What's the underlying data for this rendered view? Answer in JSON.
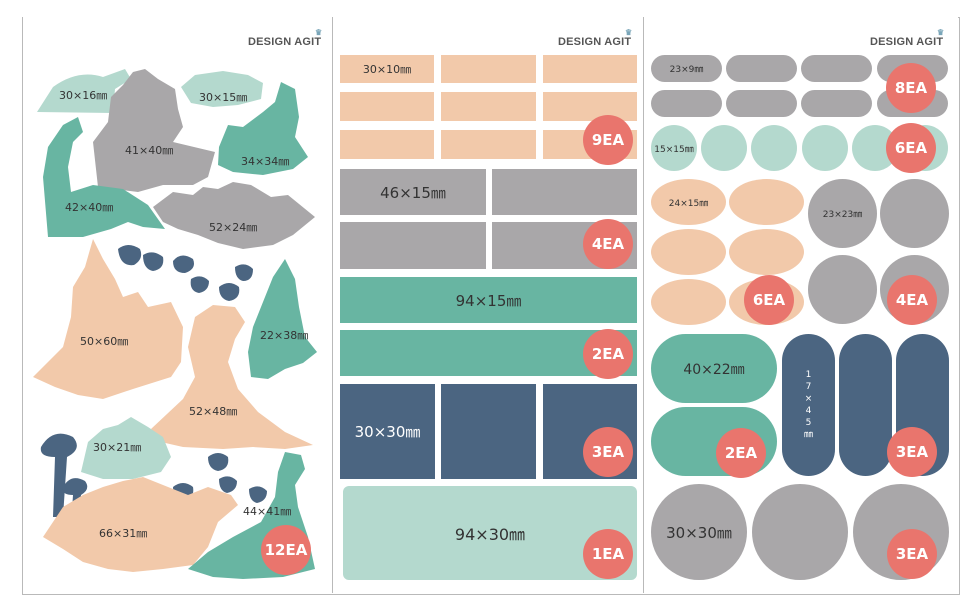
{
  "brand": "DESIGN AGIT",
  "brand_crown": "♛",
  "colors": {
    "peach": "#f2c9aa",
    "gray": "#a9a7a9",
    "teal": "#68b5a2",
    "navy": "#4b6581",
    "mint": "#b4d9ce",
    "badge": "#e9756d"
  },
  "panel1": {
    "labels": [
      "30×16㎜",
      "30×15㎜",
      "41×40㎜",
      "34×34㎜",
      "42×40㎜",
      "52×24㎜",
      "50×60㎜",
      "22×38㎜",
      "52×48㎜",
      "30×21㎜",
      "66×31㎜",
      "44×41㎜"
    ],
    "badge": "12EA"
  },
  "panel2": {
    "rows": [
      {
        "label": "30×10㎜",
        "badge": "9EA"
      },
      {
        "label": "46×15㎜",
        "badge": "4EA"
      },
      {
        "label": "94×15㎜",
        "badge": "2EA"
      },
      {
        "label": "30×30㎜",
        "badge": "3EA"
      },
      {
        "label": "94×30㎜",
        "badge": "1EA"
      }
    ]
  },
  "panel3": {
    "groups": [
      {
        "label": "23×9㎜",
        "badge": "8EA"
      },
      {
        "label": "15×15㎜",
        "badge": "6EA"
      },
      {
        "label": "24×15㎜",
        "badge": "6EA"
      },
      {
        "label": "23×23㎜",
        "badge": "4EA"
      },
      {
        "label": "40×22㎜",
        "badge": "2EA"
      },
      {
        "label": "17×45㎜",
        "label_chars": [
          "1",
          "7",
          "×",
          "4",
          "5",
          "㎜"
        ],
        "badge": "3EA"
      },
      {
        "label": "30×30㎜",
        "badge": "3EA"
      }
    ]
  }
}
